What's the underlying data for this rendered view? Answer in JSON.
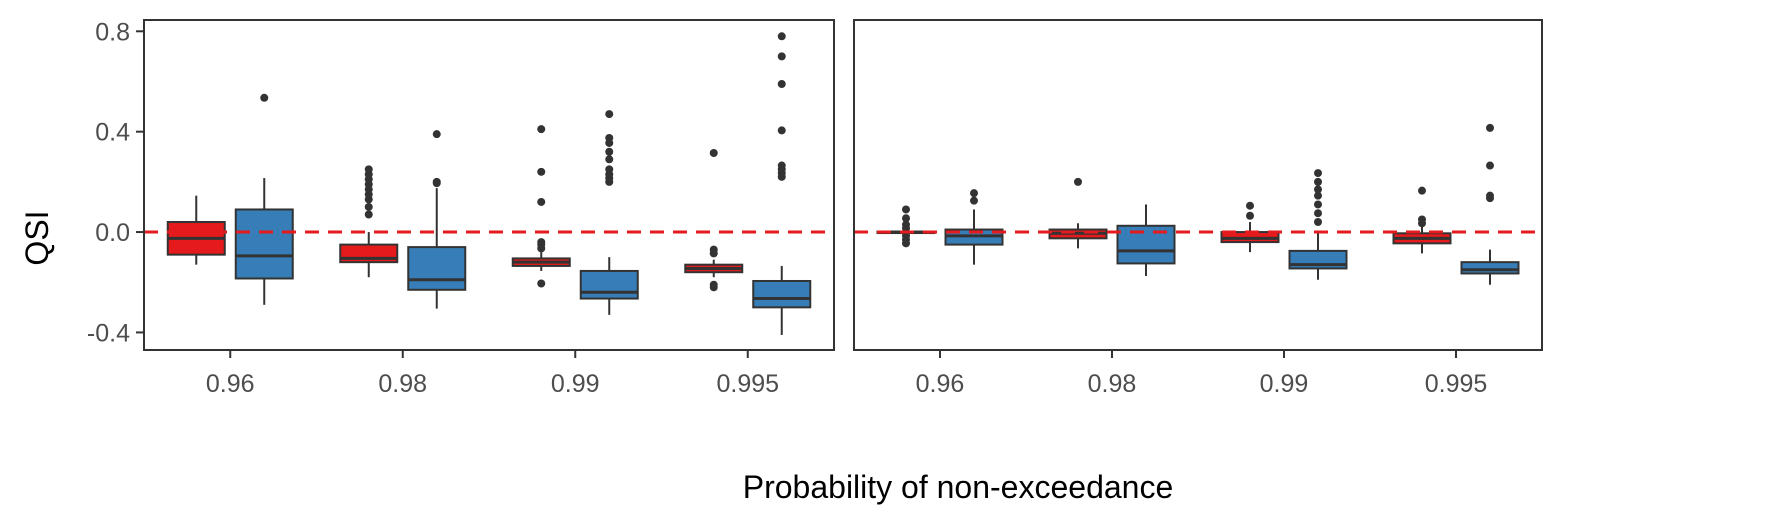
{
  "chart_data": {
    "type": "boxplot",
    "xlabel": "Probability of non-exceedance",
    "ylabel": "QSI",
    "ylim": [
      -0.47,
      0.845
    ],
    "yticks": [
      -0.4,
      0.0,
      0.4,
      0.8
    ],
    "ytick_labels": [
      "-0.4",
      "0.0",
      "0.4",
      "0.8"
    ],
    "categories": [
      "0.96",
      "0.98",
      "0.99",
      "0.995"
    ],
    "reference_line": {
      "y": 0.0,
      "color": "#e41a1c",
      "style": "dashed"
    },
    "series_colors": [
      "#e41a1c",
      "#377eb8"
    ],
    "panels": [
      {
        "name": "left",
        "groups": [
          {
            "category": "0.96",
            "boxes": [
              {
                "series": 1,
                "q1": -0.09,
                "median": -0.025,
                "q3": 0.04,
                "whisker_low": -0.13,
                "whisker_high": 0.145,
                "outliers": []
              },
              {
                "series": 2,
                "q1": -0.185,
                "median": -0.095,
                "q3": 0.09,
                "whisker_low": -0.29,
                "whisker_high": 0.215,
                "outliers": [
                  0.535
                ]
              }
            ]
          },
          {
            "category": "0.98",
            "boxes": [
              {
                "series": 1,
                "q1": -0.12,
                "median": -0.105,
                "q3": -0.05,
                "whisker_low": -0.18,
                "whisker_high": 0.0,
                "outliers": [
                  0.07,
                  0.1,
                  0.13,
                  0.15,
                  0.17,
                  0.19,
                  0.21,
                  0.23,
                  0.25
                ]
              },
              {
                "series": 2,
                "q1": -0.23,
                "median": -0.19,
                "q3": -0.06,
                "whisker_low": -0.305,
                "whisker_high": 0.175,
                "outliers": [
                  0.195,
                  0.2,
                  0.39
                ]
              }
            ]
          },
          {
            "category": "0.99",
            "boxes": [
              {
                "series": 1,
                "q1": -0.135,
                "median": -0.12,
                "q3": -0.105,
                "whisker_low": -0.155,
                "whisker_high": -0.08,
                "outliers": [
                  -0.205,
                  -0.065,
                  -0.05,
                  -0.04,
                  0.12,
                  0.24,
                  0.41
                ]
              },
              {
                "series": 2,
                "q1": -0.265,
                "median": -0.24,
                "q3": -0.155,
                "whisker_low": -0.33,
                "whisker_high": -0.1,
                "outliers": [
                  0.2,
                  0.215,
                  0.23,
                  0.25,
                  0.29,
                  0.32,
                  0.355,
                  0.375,
                  0.47
                ]
              }
            ]
          },
          {
            "category": "0.995",
            "boxes": [
              {
                "series": 1,
                "q1": -0.16,
                "median": -0.145,
                "q3": -0.13,
                "whisker_low": -0.18,
                "whisker_high": -0.11,
                "outliers": [
                  -0.22,
                  -0.21,
                  -0.085,
                  -0.07,
                  0.315
                ]
              },
              {
                "series": 2,
                "q1": -0.3,
                "median": -0.265,
                "q3": -0.195,
                "whisker_low": -0.41,
                "whisker_high": -0.135,
                "outliers": [
                  0.22,
                  0.235,
                  0.25,
                  0.265,
                  0.405,
                  0.59,
                  0.7,
                  0.78
                ]
              }
            ]
          }
        ]
      },
      {
        "name": "right",
        "groups": [
          {
            "category": "0.96",
            "boxes": [
              {
                "series": 1,
                "q1": -0.002,
                "median": 0.0,
                "q3": 0.002,
                "whisker_low": -0.004,
                "whisker_high": 0.004,
                "outliers": [
                  -0.045,
                  -0.03,
                  -0.015,
                  0.015,
                  0.03,
                  0.055,
                  0.09
                ]
              },
              {
                "series": 2,
                "q1": -0.05,
                "median": -0.015,
                "q3": 0.01,
                "whisker_low": -0.13,
                "whisker_high": 0.09,
                "outliers": [
                  0.125,
                  0.155
                ]
              }
            ]
          },
          {
            "category": "0.98",
            "boxes": [
              {
                "series": 1,
                "q1": -0.025,
                "median": -0.005,
                "q3": 0.01,
                "whisker_low": -0.065,
                "whisker_high": 0.035,
                "outliers": [
                  0.2
                ]
              }
            ]
          },
          {
            "category": "0.98",
            "boxes": [
              {
                "series": 2,
                "q1": -0.125,
                "median": -0.075,
                "q3": 0.025,
                "whisker_low": -0.175,
                "whisker_high": 0.11,
                "outliers": []
              }
            ]
          },
          {
            "category": "0.99",
            "boxes": [
              {
                "series": 1,
                "q1": -0.04,
                "median": -0.025,
                "q3": 0.0,
                "whisker_low": -0.08,
                "whisker_high": 0.04,
                "outliers": [
                  0.065,
                  0.105
                ]
              },
              {
                "series": 2,
                "q1": -0.145,
                "median": -0.13,
                "q3": -0.075,
                "whisker_low": -0.19,
                "whisker_high": 0.0,
                "outliers": [
                  0.04,
                  0.075,
                  0.11,
                  0.145,
                  0.17,
                  0.2,
                  0.235
                ]
              }
            ]
          },
          {
            "category": "0.995",
            "boxes": [
              {
                "series": 1,
                "q1": -0.045,
                "median": -0.025,
                "q3": -0.005,
                "whisker_low": -0.085,
                "whisker_high": 0.025,
                "outliers": [
                  0.035,
                  0.05,
                  0.165
                ]
              },
              {
                "series": 2,
                "q1": -0.165,
                "median": -0.15,
                "q3": -0.12,
                "whisker_low": -0.21,
                "whisker_high": -0.07,
                "outliers": [
                  0.135,
                  0.145,
                  0.265,
                  0.415
                ]
              }
            ]
          }
        ]
      }
    ]
  }
}
